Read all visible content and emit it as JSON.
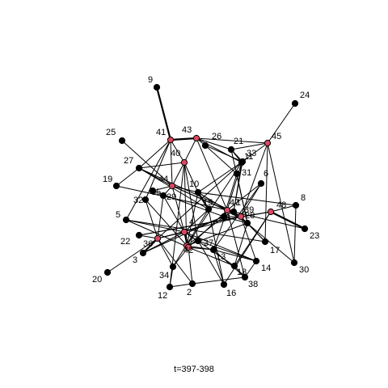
{
  "time_label": "t=397-398",
  "colors": {
    "normal_node": "#000000",
    "highlight_node": "#d9485f",
    "edge": "#000000"
  },
  "highlighted_nodes": [
    "45",
    "43",
    "41",
    "40",
    "44",
    "47",
    "39",
    "48",
    "4",
    "7",
    "42",
    "36"
  ],
  "nodes": [
    {
      "id": "1"
    },
    {
      "id": "2"
    },
    {
      "id": "3"
    },
    {
      "id": "4"
    },
    {
      "id": "5"
    },
    {
      "id": "6"
    },
    {
      "id": "7"
    },
    {
      "id": "8"
    },
    {
      "id": "9"
    },
    {
      "id": "10"
    },
    {
      "id": "11"
    },
    {
      "id": "12"
    },
    {
      "id": "13"
    },
    {
      "id": "14"
    },
    {
      "id": "15"
    },
    {
      "id": "16"
    },
    {
      "id": "17"
    },
    {
      "id": "18"
    },
    {
      "id": "19"
    },
    {
      "id": "20"
    },
    {
      "id": "21"
    },
    {
      "id": "22"
    },
    {
      "id": "23"
    },
    {
      "id": "24"
    },
    {
      "id": "25"
    },
    {
      "id": "26"
    },
    {
      "id": "27"
    },
    {
      "id": "28"
    },
    {
      "id": "29"
    },
    {
      "id": "30"
    },
    {
      "id": "31"
    },
    {
      "id": "32"
    },
    {
      "id": "33"
    },
    {
      "id": "34"
    },
    {
      "id": "35"
    },
    {
      "id": "36"
    },
    {
      "id": "37"
    },
    {
      "id": "38"
    },
    {
      "id": "39"
    },
    {
      "id": "40"
    },
    {
      "id": "41"
    },
    {
      "id": "42"
    },
    {
      "id": "43"
    },
    {
      "id": "44"
    },
    {
      "id": "45"
    },
    {
      "id": "46"
    },
    {
      "id": "47"
    },
    {
      "id": "48"
    }
  ],
  "edges": [
    [
      "9",
      "41",
      2
    ],
    [
      "24",
      "45",
      1
    ],
    [
      "25",
      "44",
      1
    ],
    [
      "20",
      "36",
      1
    ],
    [
      "19",
      "27",
      1
    ],
    [
      "19",
      "47",
      1
    ],
    [
      "41",
      "43",
      2
    ],
    [
      "41",
      "27",
      1
    ],
    [
      "41",
      "40",
      1
    ],
    [
      "41",
      "44",
      1
    ],
    [
      "41",
      "32",
      1
    ],
    [
      "41",
      "5",
      1
    ],
    [
      "43",
      "26",
      1
    ],
    [
      "43",
      "21",
      1
    ],
    [
      "43",
      "45",
      1
    ],
    [
      "43",
      "40",
      1
    ],
    [
      "43",
      "11",
      1
    ],
    [
      "43",
      "47",
      1
    ],
    [
      "45",
      "21",
      1
    ],
    [
      "45",
      "33",
      1
    ],
    [
      "45",
      "39",
      1
    ],
    [
      "45",
      "30",
      1
    ],
    [
      "45",
      "17",
      1
    ],
    [
      "21",
      "33",
      1
    ],
    [
      "21",
      "11",
      1
    ],
    [
      "21",
      "28",
      1
    ],
    [
      "26",
      "33",
      1
    ],
    [
      "26",
      "31",
      1
    ],
    [
      "27",
      "44",
      1
    ],
    [
      "27",
      "15",
      1
    ],
    [
      "27",
      "40",
      1
    ],
    [
      "27",
      "1",
      1
    ],
    [
      "40",
      "44",
      1
    ],
    [
      "40",
      "10",
      1
    ],
    [
      "40",
      "37",
      1
    ],
    [
      "40",
      "7",
      1
    ],
    [
      "40",
      "12",
      1
    ],
    [
      "44",
      "35",
      1
    ],
    [
      "44",
      "10",
      1
    ],
    [
      "44",
      "29",
      1
    ],
    [
      "44",
      "47",
      1
    ],
    [
      "44",
      "39",
      1
    ],
    [
      "44",
      "4",
      1
    ],
    [
      "32",
      "42",
      1
    ],
    [
      "32",
      "36",
      1
    ],
    [
      "35",
      "46",
      1
    ],
    [
      "29",
      "36",
      1
    ],
    [
      "29",
      "4",
      1
    ],
    [
      "10",
      "47",
      1
    ],
    [
      "10",
      "15",
      2
    ],
    [
      "10",
      "7",
      1
    ],
    [
      "10",
      "28",
      1
    ],
    [
      "10",
      "8",
      1
    ],
    [
      "6",
      "47",
      1
    ],
    [
      "6",
      "39",
      1
    ],
    [
      "6",
      "13",
      1
    ],
    [
      "8",
      "48",
      1
    ],
    [
      "8",
      "30",
      1
    ],
    [
      "48",
      "23",
      2
    ],
    [
      "48",
      "39",
      1
    ],
    [
      "48",
      "18",
      1
    ],
    [
      "48",
      "16",
      1
    ],
    [
      "47",
      "39",
      2
    ],
    [
      "47",
      "28",
      1
    ],
    [
      "47",
      "38",
      1
    ],
    [
      "47",
      "13",
      1
    ],
    [
      "47",
      "42",
      1
    ],
    [
      "47",
      "11",
      1
    ],
    [
      "39",
      "17",
      1
    ],
    [
      "39",
      "14",
      1
    ],
    [
      "39",
      "46",
      1
    ],
    [
      "39",
      "1",
      1
    ],
    [
      "39",
      "36",
      1
    ],
    [
      "39",
      "22",
      1
    ],
    [
      "4",
      "46",
      1
    ],
    [
      "4",
      "36",
      1
    ],
    [
      "4",
      "42",
      2
    ],
    [
      "4",
      "7",
      1
    ],
    [
      "4",
      "37",
      1
    ],
    [
      "4",
      "15",
      1
    ],
    [
      "4",
      "14",
      1
    ],
    [
      "4",
      "5",
      1
    ],
    [
      "4",
      "18",
      1
    ],
    [
      "4",
      "3",
      1
    ],
    [
      "36",
      "22",
      1
    ],
    [
      "36",
      "3",
      2
    ],
    [
      "36",
      "34",
      1
    ],
    [
      "36",
      "2",
      1
    ],
    [
      "36",
      "11",
      1
    ],
    [
      "42",
      "34",
      1
    ],
    [
      "42",
      "2",
      1
    ],
    [
      "42",
      "13",
      1
    ],
    [
      "42",
      "18",
      1
    ],
    [
      "42",
      "5",
      1
    ],
    [
      "7",
      "46",
      1
    ],
    [
      "7",
      "37",
      1
    ],
    [
      "7",
      "13",
      1
    ],
    [
      "7",
      "28",
      1
    ],
    [
      "13",
      "38",
      1
    ],
    [
      "13",
      "14",
      1
    ],
    [
      "13",
      "16",
      1
    ],
    [
      "37",
      "16",
      1
    ],
    [
      "37",
      "14",
      1
    ],
    [
      "38",
      "14",
      1
    ],
    [
      "38",
      "2",
      1
    ],
    [
      "38",
      "18",
      1
    ],
    [
      "2",
      "12",
      1
    ],
    [
      "12",
      "34",
      1
    ],
    [
      "5",
      "17",
      1
    ],
    [
      "17",
      "28",
      1
    ],
    [
      "31",
      "28",
      1
    ],
    [
      "31",
      "46",
      1
    ],
    [
      "1",
      "11",
      1
    ],
    [
      "1",
      "33",
      1
    ],
    [
      "3",
      "1",
      1
    ],
    [
      "22",
      "48",
      1
    ],
    [
      "34",
      "15",
      1
    ],
    [
      "30",
      "1",
      1
    ],
    [
      "46",
      "28",
      1
    ],
    [
      "16",
      "15",
      1
    ],
    [
      "11",
      "7",
      1
    ],
    [
      "18",
      "28",
      1
    ],
    [
      "23",
      "1",
      1
    ],
    [
      "33",
      "10",
      1
    ]
  ]
}
